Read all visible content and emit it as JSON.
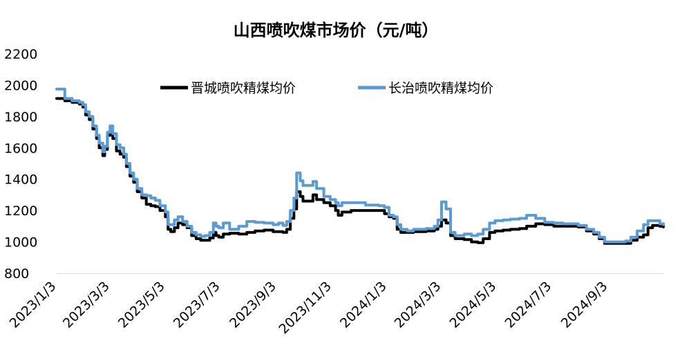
{
  "chart_data": {
    "type": "line",
    "title": "山西喷吹煤市场价（元/吨）",
    "xlabel": "",
    "ylabel": "",
    "ylim": [
      800,
      2200
    ],
    "yticks": [
      800,
      1000,
      1200,
      1400,
      1600,
      1800,
      2000,
      2200
    ],
    "xlim": [
      "2023/1/3",
      "2024/11/3"
    ],
    "xticks": [
      "2023/1/3",
      "2023/3/3",
      "2023/5/3",
      "2023/7/3",
      "2023/9/3",
      "2023/11/3",
      "2024/1/3",
      "2024/3/3",
      "2024/5/3",
      "2024/7/3",
      "2024/9/3"
    ],
    "legend_position": "top-center",
    "series": [
      {
        "name": "晋城喷吹精煤均价",
        "color": "#000000",
        "points": [
          [
            "2023/1/3",
            1915
          ],
          [
            "2023/1/9",
            1915
          ],
          [
            "2023/1/12",
            1900
          ],
          [
            "2023/1/20",
            1890
          ],
          [
            "2023/1/28",
            1880
          ],
          [
            "2023/2/1",
            1860
          ],
          [
            "2023/2/4",
            1810
          ],
          [
            "2023/2/8",
            1780
          ],
          [
            "2023/2/12",
            1720
          ],
          [
            "2023/2/16",
            1660
          ],
          [
            "2023/2/19",
            1600
          ],
          [
            "2023/2/23",
            1550
          ],
          [
            "2023/2/25",
            1590
          ],
          [
            "2023/2/28",
            1680
          ],
          [
            "2023/3/3",
            1700
          ],
          [
            "2023/3/6",
            1660
          ],
          [
            "2023/3/10",
            1580
          ],
          [
            "2023/3/14",
            1560
          ],
          [
            "2023/3/18",
            1540
          ],
          [
            "2023/3/21",
            1480
          ],
          [
            "2023/3/25",
            1420
          ],
          [
            "2023/3/29",
            1380
          ],
          [
            "2023/4/2",
            1320
          ],
          [
            "2023/4/7",
            1280
          ],
          [
            "2023/4/12",
            1240
          ],
          [
            "2023/4/17",
            1230
          ],
          [
            "2023/4/22",
            1225
          ],
          [
            "2023/4/27",
            1200
          ],
          [
            "2023/5/3",
            1160
          ],
          [
            "2023/5/6",
            1080
          ],
          [
            "2023/5/9",
            1065
          ],
          [
            "2023/5/13",
            1090
          ],
          [
            "2023/5/17",
            1120
          ],
          [
            "2023/5/22",
            1110
          ],
          [
            "2023/5/27",
            1090
          ],
          [
            "2023/6/1",
            1040
          ],
          [
            "2023/6/6",
            1020
          ],
          [
            "2023/6/11",
            1010
          ],
          [
            "2023/6/16",
            1010
          ],
          [
            "2023/6/21",
            1025
          ],
          [
            "2023/6/25",
            1060
          ],
          [
            "2023/6/28",
            1040
          ],
          [
            "2023/7/1",
            1030
          ],
          [
            "2023/7/6",
            1050
          ],
          [
            "2023/7/13",
            1055
          ],
          [
            "2023/7/23",
            1050
          ],
          [
            "2023/8/1",
            1060
          ],
          [
            "2023/8/10",
            1070
          ],
          [
            "2023/8/20",
            1075
          ],
          [
            "2023/8/30",
            1065
          ],
          [
            "2023/9/5",
            1065
          ],
          [
            "2023/9/10",
            1060
          ],
          [
            "2023/9/14",
            1080
          ],
          [
            "2023/9/18",
            1150
          ],
          [
            "2023/9/22",
            1210
          ],
          [
            "2023/9/25",
            1320
          ],
          [
            "2023/9/29",
            1290
          ],
          [
            "2023/10/2",
            1260
          ],
          [
            "2023/10/10",
            1260
          ],
          [
            "2023/10/13",
            1300
          ],
          [
            "2023/10/17",
            1270
          ],
          [
            "2023/10/25",
            1250
          ],
          [
            "2023/11/1",
            1230
          ],
          [
            "2023/11/7",
            1200
          ],
          [
            "2023/11/10",
            1170
          ],
          [
            "2023/11/14",
            1190
          ],
          [
            "2023/11/24",
            1200
          ],
          [
            "2023/12/10",
            1200
          ],
          [
            "2023/12/25",
            1200
          ],
          [
            "2023/12/31",
            1180
          ],
          [
            "2024/1/5",
            1160
          ],
          [
            "2024/1/10",
            1150
          ],
          [
            "2024/1/14",
            1080
          ],
          [
            "2024/1/18",
            1060
          ],
          [
            "2024/1/25",
            1060
          ],
          [
            "2024/2/1",
            1065
          ],
          [
            "2024/2/15",
            1070
          ],
          [
            "2024/2/24",
            1080
          ],
          [
            "2024/2/28",
            1100
          ],
          [
            "2024/3/3",
            1140
          ],
          [
            "2024/3/8",
            1120
          ],
          [
            "2024/3/13",
            1040
          ],
          [
            "2024/3/18",
            1020
          ],
          [
            "2024/3/28",
            1015
          ],
          [
            "2024/4/5",
            1000
          ],
          [
            "2024/4/12",
            995
          ],
          [
            "2024/4/18",
            1020
          ],
          [
            "2024/4/25",
            1060
          ],
          [
            "2024/5/1",
            1070
          ],
          [
            "2024/5/10",
            1075
          ],
          [
            "2024/5/18",
            1080
          ],
          [
            "2024/5/28",
            1085
          ],
          [
            "2024/6/5",
            1100
          ],
          [
            "2024/6/15",
            1115
          ],
          [
            "2024/6/25",
            1110
          ],
          [
            "2024/7/5",
            1100
          ],
          [
            "2024/7/15",
            1100
          ],
          [
            "2024/7/25",
            1100
          ],
          [
            "2024/8/1",
            1095
          ],
          [
            "2024/8/10",
            1070
          ],
          [
            "2024/8/18",
            1050
          ],
          [
            "2024/8/24",
            1020
          ],
          [
            "2024/8/30",
            990
          ],
          [
            "2024/9/10",
            990
          ],
          [
            "2024/9/22",
            990
          ],
          [
            "2024/9/28",
            1010
          ],
          [
            "2024/10/5",
            1030
          ],
          [
            "2024/10/12",
            1045
          ],
          [
            "2024/10/17",
            1090
          ],
          [
            "2024/10/22",
            1105
          ],
          [
            "2024/10/30",
            1100
          ],
          [
            "2024/11/3",
            1095
          ]
        ]
      },
      {
        "name": "长治喷吹精煤均价",
        "color": "#5B9BD5",
        "points": [
          [
            "2023/1/3",
            1975
          ],
          [
            "2023/1/9",
            1975
          ],
          [
            "2023/1/12",
            1915
          ],
          [
            "2023/1/20",
            1900
          ],
          [
            "2023/1/28",
            1890
          ],
          [
            "2023/2/1",
            1875
          ],
          [
            "2023/2/4",
            1830
          ],
          [
            "2023/2/8",
            1800
          ],
          [
            "2023/2/12",
            1740
          ],
          [
            "2023/2/16",
            1680
          ],
          [
            "2023/2/19",
            1630
          ],
          [
            "2023/2/23",
            1575
          ],
          [
            "2023/2/25",
            1610
          ],
          [
            "2023/2/28",
            1700
          ],
          [
            "2023/3/3",
            1740
          ],
          [
            "2023/3/6",
            1690
          ],
          [
            "2023/3/10",
            1620
          ],
          [
            "2023/3/14",
            1600
          ],
          [
            "2023/3/18",
            1560
          ],
          [
            "2023/3/21",
            1500
          ],
          [
            "2023/3/25",
            1440
          ],
          [
            "2023/3/29",
            1400
          ],
          [
            "2023/4/2",
            1340
          ],
          [
            "2023/4/7",
            1300
          ],
          [
            "2023/4/12",
            1295
          ],
          [
            "2023/4/17",
            1280
          ],
          [
            "2023/4/22",
            1265
          ],
          [
            "2023/4/27",
            1230
          ],
          [
            "2023/5/3",
            1190
          ],
          [
            "2023/5/6",
            1110
          ],
          [
            "2023/5/9",
            1110
          ],
          [
            "2023/5/13",
            1140
          ],
          [
            "2023/5/17",
            1160
          ],
          [
            "2023/5/22",
            1130
          ],
          [
            "2023/5/27",
            1100
          ],
          [
            "2023/6/1",
            1060
          ],
          [
            "2023/6/6",
            1045
          ],
          [
            "2023/6/11",
            1035
          ],
          [
            "2023/6/16",
            1040
          ],
          [
            "2023/6/21",
            1060
          ],
          [
            "2023/6/25",
            1120
          ],
          [
            "2023/6/28",
            1100
          ],
          [
            "2023/7/1",
            1090
          ],
          [
            "2023/7/6",
            1120
          ],
          [
            "2023/7/13",
            1080
          ],
          [
            "2023/7/23",
            1100
          ],
          [
            "2023/8/1",
            1130
          ],
          [
            "2023/8/10",
            1125
          ],
          [
            "2023/8/20",
            1120
          ],
          [
            "2023/8/30",
            1110
          ],
          [
            "2023/9/5",
            1120
          ],
          [
            "2023/9/10",
            1105
          ],
          [
            "2023/9/14",
            1130
          ],
          [
            "2023/9/18",
            1200
          ],
          [
            "2023/9/22",
            1280
          ],
          [
            "2023/9/25",
            1440
          ],
          [
            "2023/9/29",
            1390
          ],
          [
            "2023/10/2",
            1360
          ],
          [
            "2023/10/10",
            1360
          ],
          [
            "2023/10/13",
            1385
          ],
          [
            "2023/10/17",
            1340
          ],
          [
            "2023/10/25",
            1290
          ],
          [
            "2023/11/1",
            1270
          ],
          [
            "2023/11/7",
            1250
          ],
          [
            "2023/11/10",
            1230
          ],
          [
            "2023/11/14",
            1250
          ],
          [
            "2023/11/24",
            1250
          ],
          [
            "2023/12/10",
            1235
          ],
          [
            "2023/12/25",
            1230
          ],
          [
            "2023/12/31",
            1220
          ],
          [
            "2024/1/5",
            1170
          ],
          [
            "2024/1/10",
            1160
          ],
          [
            "2024/1/14",
            1110
          ],
          [
            "2024/1/18",
            1080
          ],
          [
            "2024/1/25",
            1070
          ],
          [
            "2024/2/1",
            1080
          ],
          [
            "2024/2/15",
            1085
          ],
          [
            "2024/2/24",
            1100
          ],
          [
            "2024/2/28",
            1140
          ],
          [
            "2024/3/3",
            1255
          ],
          [
            "2024/3/8",
            1210
          ],
          [
            "2024/3/13",
            1060
          ],
          [
            "2024/3/18",
            1040
          ],
          [
            "2024/3/28",
            1050
          ],
          [
            "2024/4/5",
            1040
          ],
          [
            "2024/4/12",
            1050
          ],
          [
            "2024/4/18",
            1080
          ],
          [
            "2024/4/25",
            1120
          ],
          [
            "2024/5/1",
            1135
          ],
          [
            "2024/5/10",
            1140
          ],
          [
            "2024/5/18",
            1145
          ],
          [
            "2024/5/28",
            1150
          ],
          [
            "2024/6/5",
            1170
          ],
          [
            "2024/6/15",
            1150
          ],
          [
            "2024/6/25",
            1125
          ],
          [
            "2024/7/5",
            1120
          ],
          [
            "2024/7/15",
            1115
          ],
          [
            "2024/7/25",
            1115
          ],
          [
            "2024/8/1",
            1105
          ],
          [
            "2024/8/10",
            1080
          ],
          [
            "2024/8/18",
            1060
          ],
          [
            "2024/8/24",
            1030
          ],
          [
            "2024/8/30",
            1000
          ],
          [
            "2024/9/10",
            1000
          ],
          [
            "2024/9/22",
            1005
          ],
          [
            "2024/9/28",
            1030
          ],
          [
            "2024/10/5",
            1070
          ],
          [
            "2024/10/12",
            1110
          ],
          [
            "2024/10/17",
            1135
          ],
          [
            "2024/10/22",
            1135
          ],
          [
            "2024/10/30",
            1115
          ],
          [
            "2024/11/3",
            1110
          ]
        ]
      }
    ]
  }
}
